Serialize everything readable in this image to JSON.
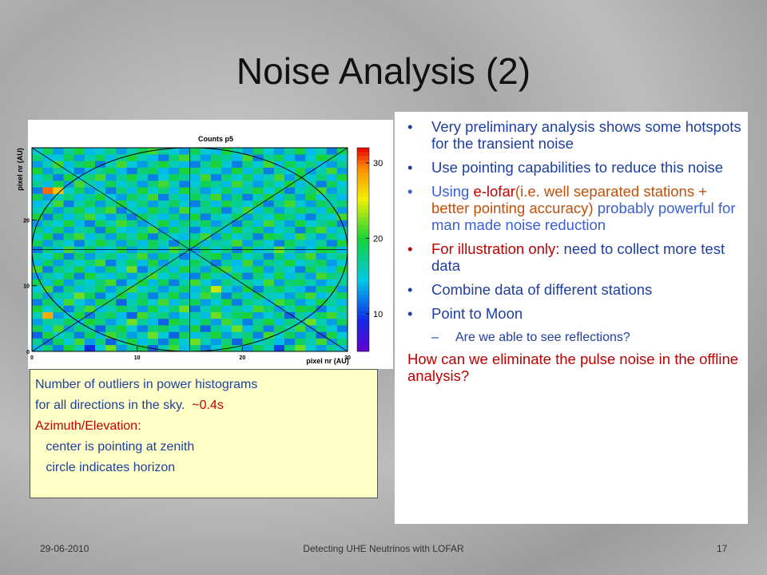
{
  "title": "Noise Analysis (2)",
  "chart_data": {
    "type": "heatmap",
    "title": "Counts p5",
    "xlabel": "pixel nr (AU)",
    "ylabel": "pixel nr (AU)",
    "xlim": [
      0,
      30
    ],
    "ylim": [
      0,
      31
    ],
    "xticks": [
      0,
      10,
      20,
      30
    ],
    "yticks": [
      0,
      10,
      20
    ],
    "zlim": [
      5,
      32
    ],
    "zticks": [
      10,
      20,
      30
    ],
    "z": [
      [
        14,
        18,
        12,
        20,
        16,
        9,
        15,
        22,
        13,
        17,
        19,
        11,
        16,
        21,
        14,
        18,
        12,
        15,
        20,
        17,
        13,
        19,
        16,
        10,
        18,
        22,
        15,
        13,
        17,
        14
      ],
      [
        17,
        12,
        19,
        15,
        21,
        13,
        18,
        11,
        16,
        20,
        14,
        17,
        12,
        19,
        15,
        22,
        16,
        13,
        18,
        11,
        20,
        15,
        17,
        14,
        12,
        19,
        16,
        21,
        13,
        18
      ],
      [
        11,
        20,
        15,
        17,
        12,
        19,
        14,
        21,
        18,
        13,
        16,
        22,
        15,
        11,
        19,
        14,
        17,
        20,
        13,
        16,
        18,
        12,
        21,
        15,
        19,
        13,
        17,
        11,
        20,
        15
      ],
      [
        19,
        14,
        21,
        13,
        18,
        16,
        11,
        17,
        20,
        15,
        12,
        18,
        19,
        16,
        13,
        20,
        11,
        17,
        15,
        22,
        14,
        18,
        12,
        19,
        16,
        21,
        13,
        18,
        15,
        12
      ],
      [
        13,
        17,
        16,
        19,
        14,
        20,
        18,
        13,
        15,
        22,
        17,
        14,
        11,
        20,
        18,
        15,
        19,
        13,
        21,
        16,
        12,
        17,
        20,
        14,
        18,
        15,
        22,
        16,
        13,
        19
      ],
      [
        16,
        28,
        13,
        15,
        20,
        12,
        17,
        19,
        14,
        11,
        21,
        16,
        18,
        13,
        15,
        17,
        14,
        22,
        16,
        19,
        20,
        13,
        15,
        18,
        11,
        17,
        14,
        19,
        21,
        16
      ],
      [
        20,
        15,
        18,
        12,
        17,
        21,
        14,
        16,
        19,
        17,
        13,
        20,
        15,
        18,
        22,
        12,
        16,
        19,
        14,
        17,
        15,
        21,
        18,
        13,
        16,
        20,
        19,
        12,
        15,
        18
      ],
      [
        12,
        19,
        14,
        21,
        15,
        13,
        20,
        18,
        11,
        16,
        19,
        15,
        21,
        14,
        17,
        19,
        13,
        15,
        20,
        12,
        18,
        16,
        14,
        21,
        19,
        13,
        15,
        20,
        17,
        14
      ],
      [
        18,
        13,
        17,
        16,
        22,
        19,
        12,
        15,
        20,
        14,
        18,
        12,
        16,
        20,
        13,
        15,
        21,
        17,
        12,
        18,
        14,
        19,
        16,
        15,
        13,
        18,
        21,
        14,
        16,
        19
      ],
      [
        15,
        21,
        12,
        18,
        14,
        16,
        19,
        13,
        17,
        21,
        15,
        17,
        13,
        16,
        19,
        14,
        18,
        24,
        15,
        13,
        20,
        12,
        17,
        19,
        16,
        14,
        12,
        18,
        20,
        13
      ],
      [
        19,
        14,
        20,
        13,
        17,
        15,
        18,
        21,
        12,
        15,
        20,
        14,
        19,
        12,
        16,
        21,
        15,
        13,
        18,
        16,
        17,
        15,
        21,
        13,
        18,
        19,
        16,
        13,
        15,
        17
      ],
      [
        13,
        17,
        15,
        19,
        12,
        20,
        16,
        14,
        18,
        13,
        17,
        21,
        15,
        18,
        14,
        12,
        20,
        16,
        14,
        19,
        12,
        18,
        15,
        20,
        14,
        17,
        13,
        21,
        18,
        16
      ],
      [
        21,
        12,
        18,
        16,
        20,
        14,
        13,
        19,
        15,
        22,
        12,
        16,
        18,
        14,
        20,
        17,
        13,
        19,
        21,
        15,
        16,
        20,
        13,
        17,
        15,
        12,
        19,
        16,
        14,
        20
      ],
      [
        14,
        19,
        13,
        17,
        15,
        18,
        21,
        12,
        16,
        19,
        14,
        20,
        13,
        17,
        15,
        19,
        16,
        12,
        17,
        14,
        21,
        13,
        18,
        16,
        20,
        15,
        17,
        19,
        13,
        15
      ],
      [
        17,
        15,
        20,
        12,
        19,
        13,
        16,
        18,
        14,
        17,
        21,
        13,
        19,
        16,
        12,
        15,
        18,
        20,
        13,
        19,
        15,
        17,
        12,
        19,
        14,
        18,
        21,
        13,
        16,
        18
      ],
      [
        12,
        18,
        14,
        21,
        16,
        19,
        14,
        15,
        20,
        13,
        16,
        18,
        14,
        21,
        17,
        13,
        19,
        15,
        18,
        12,
        20,
        14,
        16,
        22,
        17,
        13,
        15,
        20,
        19,
        14
      ],
      [
        19,
        13,
        17,
        15,
        12,
        16,
        20,
        17,
        13,
        18,
        14,
        19,
        16,
        12,
        18,
        20,
        14,
        17,
        16,
        21,
        13,
        18,
        15,
        12,
        19,
        16,
        14,
        17,
        12,
        20
      ],
      [
        15,
        20,
        12,
        18,
        21,
        14,
        17,
        13,
        19,
        16,
        20,
        12,
        18,
        15,
        14,
        17,
        21,
        13,
        19,
        15,
        17,
        12,
        20,
        18,
        14,
        21,
        16,
        13,
        18,
        15
      ],
      [
        18,
        14,
        19,
        13,
        16,
        18,
        12,
        20,
        15,
        14,
        17,
        21,
        13,
        19,
        16,
        12,
        15,
        18,
        14,
        20,
        16,
        19,
        13,
        15,
        17,
        12,
        19,
        21,
        14,
        17
      ],
      [
        13,
        17,
        15,
        20,
        14,
        12,
        19,
        16,
        21,
        18,
        13,
        15,
        20,
        14,
        18,
        16,
        19,
        13,
        17,
        12,
        18,
        14,
        21,
        16,
        13,
        20,
        15,
        17,
        19,
        12
      ],
      [
        20,
        12,
        18,
        14,
        17,
        21,
        15,
        13,
        17,
        12,
        19,
        16,
        14,
        18,
        13,
        20,
        12,
        16,
        15,
        19,
        13,
        17,
        15,
        20,
        18,
        14,
        12,
        16,
        15,
        21
      ],
      [
        16,
        19,
        13,
        17,
        20,
        15,
        18,
        21,
        12,
        16,
        14,
        20,
        17,
        13,
        21,
        15,
        17,
        19,
        12,
        16,
        21,
        14,
        18,
        13,
        16,
        19,
        17,
        14,
        20,
        13
      ],
      [
        14,
        15,
        21,
        12,
        16,
        19,
        13,
        17,
        20,
        15,
        18,
        13,
        16,
        19,
        15,
        12,
        18,
        14,
        20,
        17,
        15,
        19,
        12,
        17,
        21,
        15,
        13,
        19,
        16,
        18
      ],
      [
        19,
        13,
        16,
        18,
        14,
        17,
        20,
        15,
        13,
        19,
        16,
        21,
        12,
        17,
        14,
        19,
        16,
        21,
        13,
        18,
        12,
        16,
        20,
        14,
        18,
        13,
        20,
        15,
        17,
        14
      ],
      [
        12,
        30,
        27,
        15,
        19,
        13,
        16,
        12,
        18,
        14,
        20,
        15,
        18,
        14,
        20,
        17,
        13,
        15,
        19,
        14,
        17,
        20,
        15,
        19,
        12,
        16,
        18,
        21,
        13,
        16
      ],
      [
        17,
        14,
        19,
        13,
        21,
        16,
        14,
        19,
        15,
        17,
        13,
        18,
        21,
        16,
        12,
        15,
        19,
        17,
        14,
        21,
        16,
        13,
        18,
        15,
        20,
        14,
        17,
        12,
        19,
        15
      ],
      [
        15,
        18,
        12,
        20,
        15,
        18,
        21,
        13,
        17,
        20,
        16,
        12,
        15,
        19,
        17,
        14,
        21,
        12,
        18,
        15,
        19,
        14,
        16,
        21,
        13,
        19,
        15,
        18,
        14,
        20
      ],
      [
        20,
        13,
        17,
        15,
        12,
        14,
        17,
        19,
        14,
        12,
        18,
        19,
        14,
        13,
        20,
        18,
        15,
        16,
        13,
        20,
        14,
        18,
        12,
        17,
        15,
        20,
        13,
        16,
        21,
        13
      ],
      [
        13,
        16,
        21,
        14,
        18,
        20,
        12,
        16,
        21,
        15,
        13,
        17,
        20,
        16,
        14,
        12,
        17,
        20,
        15,
        12,
        18,
        15,
        21,
        14,
        19,
        16,
        18,
        14,
        13,
        17
      ],
      [
        18,
        14,
        15,
        19,
        13,
        16,
        19,
        14,
        17,
        20,
        16,
        14,
        12,
        18,
        21,
        16,
        13,
        18,
        17,
        14,
        21,
        12,
        17,
        19,
        14,
        12,
        15,
        20,
        18,
        15
      ],
      [
        15,
        19,
        13,
        17,
        20,
        14,
        15,
        18,
        13,
        16,
        19,
        21,
        17,
        15,
        13,
        19,
        15,
        14,
        20,
        16,
        13,
        19,
        15,
        13,
        17,
        20,
        14,
        16,
        12,
        19
      ]
    ]
  },
  "caption": [
    [
      {
        "text": "Number of outliers in power histograms",
        "color": "#1f3fa0"
      }
    ],
    [
      {
        "text": "for all directions in the sky.  ",
        "color": "#1f3fa0"
      },
      {
        "text": "~0.4s",
        "color": "#c00000"
      }
    ],
    [
      {
        "text": "Azimuth/Elevation:",
        "color": "#c00000"
      }
    ],
    [
      {
        "text": "   center is pointing at zenith",
        "color": "#1f3fa0"
      }
    ],
    [
      {
        "text": "   circle indicates horizon",
        "color": "#1f3fa0"
      }
    ]
  ],
  "bullets": [
    {
      "level": 1,
      "color": "#1f3fa0",
      "segments": [
        {
          "text": "Very preliminary analysis shows some hotspots for the transient noise",
          "color": "#1f3fa0"
        }
      ]
    },
    {
      "level": 1,
      "color": "#1f3fa0",
      "segments": [
        {
          "text": "Use pointing capabilities to reduce this noise",
          "color": "#1f3fa0"
        }
      ]
    },
    {
      "level": 1,
      "color": "#3a5fd0",
      "segments": [
        {
          "text": "Using ",
          "color": "#3a5fd0"
        },
        {
          "text": "e-lofar",
          "color": "#c00000"
        },
        {
          "text": "(i.e. well separated stations + better pointing accuracy)",
          "color": "#c0500a"
        },
        {
          "text": " probably powerful for man made noise reduction",
          "color": "#3a5fd0"
        }
      ]
    },
    {
      "level": 1,
      "color": "#c00000",
      "segments": [
        {
          "text": "For illustration only:",
          "color": "#c00000"
        },
        {
          "text": " need to collect more test data",
          "color": "#1f3fa0"
        }
      ]
    },
    {
      "level": 1,
      "color": "#1f3fa0",
      "segments": [
        {
          "text": "Combine data of different stations",
          "color": "#1f3fa0"
        }
      ]
    },
    {
      "level": 1,
      "color": "#1f3fa0",
      "segments": [
        {
          "text": "Point to Moon",
          "color": "#1f3fa0"
        }
      ]
    },
    {
      "level": 2,
      "color": "#1f3fa0",
      "segments": [
        {
          "text": "Are we able to see reflections?",
          "color": "#1f3fa0"
        }
      ]
    }
  ],
  "question": "How can we eliminate the pulse noise in the offline analysis?",
  "footer": {
    "date": "29-06-2010",
    "title": "Detecting UHE Neutrinos with LOFAR",
    "page": "17"
  }
}
